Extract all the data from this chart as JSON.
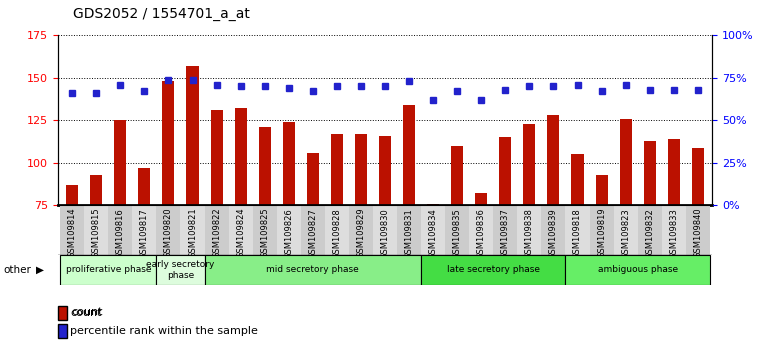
{
  "title": "GDS2052 / 1554701_a_at",
  "samples": [
    "GSM109814",
    "GSM109815",
    "GSM109816",
    "GSM109817",
    "GSM109820",
    "GSM109821",
    "GSM109822",
    "GSM109824",
    "GSM109825",
    "GSM109826",
    "GSM109827",
    "GSM109828",
    "GSM109829",
    "GSM109830",
    "GSM109831",
    "GSM109834",
    "GSM109835",
    "GSM109836",
    "GSM109837",
    "GSM109838",
    "GSM109839",
    "GSM109818",
    "GSM109819",
    "GSM109823",
    "GSM109832",
    "GSM109833",
    "GSM109840"
  ],
  "counts": [
    87,
    93,
    125,
    97,
    148,
    157,
    131,
    132,
    121,
    124,
    106,
    117,
    117,
    116,
    134,
    76,
    110,
    82,
    115,
    123,
    128,
    105,
    93,
    126,
    113,
    114,
    109
  ],
  "percentiles": [
    66,
    66,
    71,
    67,
    74,
    74,
    71,
    70,
    70,
    69,
    67,
    70,
    70,
    70,
    73,
    62,
    67,
    62,
    68,
    70,
    70,
    71,
    67,
    71,
    68,
    68,
    68
  ],
  "phases": [
    {
      "label": "proliferative phase",
      "start": 0,
      "end": 4,
      "color": "#ccffcc"
    },
    {
      "label": "early secretory\nphase",
      "start": 4,
      "end": 6,
      "color": "#ddfcdd"
    },
    {
      "label": "mid secretory phase",
      "start": 6,
      "end": 15,
      "color": "#88ee88"
    },
    {
      "label": "late secretory phase",
      "start": 15,
      "end": 21,
      "color": "#44dd44"
    },
    {
      "label": "ambiguous phase",
      "start": 21,
      "end": 27,
      "color": "#66ee66"
    }
  ],
  "ylim_left": [
    75,
    175
  ],
  "ylim_right": [
    0,
    100
  ],
  "yticks_left": [
    75,
    100,
    125,
    150,
    175
  ],
  "yticks_right": [
    0,
    25,
    50,
    75,
    100
  ],
  "ytick_labels_right": [
    "0%",
    "25%",
    "50%",
    "75%",
    "100%"
  ],
  "bar_color": "#bb1100",
  "dot_color": "#2222cc",
  "bar_width": 0.5,
  "background_color": "#ffffff",
  "legend_count_color": "#bb1100",
  "legend_pct_color": "#2222cc"
}
